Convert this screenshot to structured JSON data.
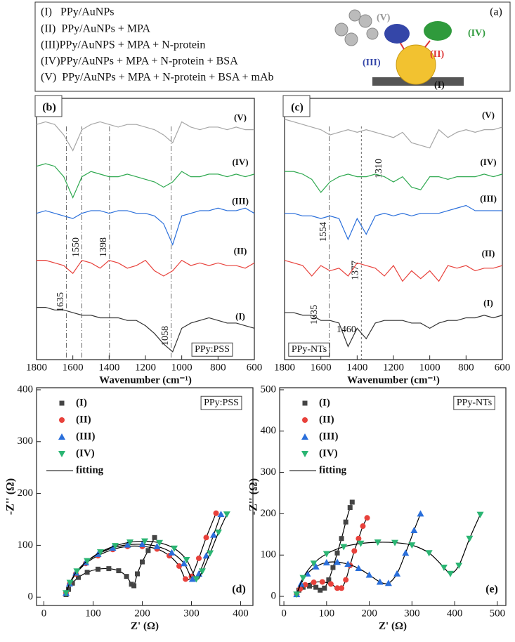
{
  "panel_a": {
    "label": "(a)",
    "items": [
      "(I)   PPy/AuNPs",
      "(II)  PPy/AuNPs + MPA",
      "(III)PPy/AuNPS + MPA + N-protein",
      "(IV)PPy/AuNPs + MPA + N-protein + BSA",
      "(V)  PPy/AuNPs + MPA + N-protein + BSA + mAb"
    ],
    "diagram_labels": [
      "(V)",
      "(IV)",
      "(III)",
      "(II)",
      "(I)"
    ]
  },
  "chart_data": [
    {
      "type": "line",
      "panel_label": "(b)",
      "sample_label": "PPy:PSS",
      "x_label": "Wavenumber (cm⁻¹)",
      "xlim": [
        1800,
        600
      ],
      "xticks": [
        1800,
        1600,
        1400,
        1200,
        1000,
        800,
        600
      ],
      "ylim": [
        0,
        100
      ],
      "x": [
        1800,
        1750,
        1700,
        1650,
        1600,
        1550,
        1500,
        1450,
        1400,
        1350,
        1300,
        1250,
        1200,
        1150,
        1100,
        1050,
        1000,
        950,
        900,
        850,
        800,
        750,
        700,
        650,
        600
      ],
      "series": [
        {
          "name": "(V)",
          "color": "#a6a6a6",
          "values": [
            90,
            91,
            90,
            86,
            80,
            88,
            90,
            91,
            90,
            89,
            90,
            90,
            89,
            88,
            86,
            83,
            91,
            89,
            88,
            89,
            89,
            88,
            89,
            88,
            88
          ]
        },
        {
          "name": "(IV)",
          "color": "#2ea84f",
          "values": [
            74,
            75,
            74,
            70,
            62,
            70,
            72,
            71,
            70,
            70,
            71,
            70,
            69,
            68,
            66,
            68,
            72,
            70,
            70,
            71,
            71,
            70,
            71,
            70,
            71
          ]
        },
        {
          "name": "(III)",
          "color": "#2a6fdb",
          "values": [
            56,
            57,
            56,
            55,
            54,
            56,
            57,
            57,
            56,
            57,
            57,
            56,
            56,
            55,
            52,
            44,
            55,
            56,
            57,
            57,
            58,
            57,
            57,
            58,
            56
          ]
        },
        {
          "name": "(II)",
          "color": "#e8413b",
          "values": [
            38,
            38,
            37,
            36,
            33,
            38,
            37,
            35,
            38,
            37,
            35,
            36,
            38,
            34,
            32,
            34,
            38,
            36,
            37,
            36,
            37,
            36,
            36,
            35,
            37
          ]
        },
        {
          "name": "(I)",
          "color": "#333333",
          "values": [
            20,
            20,
            19,
            19,
            18,
            17,
            17,
            16,
            16,
            16,
            15,
            15,
            13,
            10,
            6,
            3,
            12,
            14,
            15,
            16,
            15,
            14,
            14,
            13,
            12
          ]
        }
      ],
      "marked_lines": [
        1635,
        1550,
        1398,
        1058
      ]
    },
    {
      "type": "line",
      "panel_label": "(c)",
      "sample_label": "PPy-NTs",
      "x_label": "Wavenumber (cm⁻¹)",
      "xlim": [
        1800,
        600
      ],
      "xticks": [
        1800,
        1600,
        1400,
        1200,
        1000,
        800,
        600
      ],
      "ylim": [
        0,
        100
      ],
      "x": [
        1800,
        1750,
        1700,
        1650,
        1600,
        1550,
        1500,
        1450,
        1400,
        1350,
        1300,
        1250,
        1200,
        1150,
        1100,
        1050,
        1000,
        950,
        900,
        850,
        800,
        750,
        700,
        650,
        600
      ],
      "series": [
        {
          "name": "(V)",
          "color": "#a6a6a6",
          "values": [
            92,
            91,
            90,
            89,
            88,
            86,
            87,
            88,
            87,
            88,
            87,
            86,
            85,
            87,
            83,
            82,
            81,
            88,
            85,
            87,
            88,
            87,
            88,
            88,
            89
          ]
        },
        {
          "name": "(IV)",
          "color": "#2ea84f",
          "values": [
            72,
            72,
            71,
            69,
            64,
            68,
            70,
            71,
            70,
            70,
            71,
            70,
            68,
            70,
            66,
            65,
            70,
            70,
            69,
            70,
            70,
            70,
            71,
            70,
            71
          ]
        },
        {
          "name": "(III)",
          "color": "#2a6fdb",
          "values": [
            56,
            56,
            55,
            55,
            54,
            55,
            54,
            46,
            54,
            48,
            55,
            56,
            55,
            56,
            55,
            56,
            56,
            56,
            57,
            58,
            59,
            57,
            57,
            57,
            57
          ]
        },
        {
          "name": "(II)",
          "color": "#e8413b",
          "values": [
            38,
            37,
            36,
            32,
            36,
            34,
            35,
            32,
            37,
            36,
            35,
            32,
            36,
            30,
            34,
            31,
            34,
            30,
            36,
            35,
            36,
            34,
            35,
            35,
            36
          ]
        },
        {
          "name": "(I)",
          "color": "#333333",
          "values": [
            18,
            18,
            17,
            17,
            15,
            15,
            14,
            5,
            12,
            8,
            14,
            15,
            15,
            15,
            14,
            14,
            12,
            14,
            15,
            15,
            16,
            16,
            17,
            16,
            17
          ]
        }
      ],
      "marked_lines": [
        1554,
        1377
      ],
      "peak_labels": [
        1635,
        1460,
        1310
      ]
    },
    {
      "type": "scatter",
      "panel_label": "(d)",
      "sample_label": "PPy:PSS",
      "x_label": "Z' (Ω)",
      "y_label": "-Z'' (Ω)",
      "xlim": [
        -15,
        425
      ],
      "xticks": [
        0,
        100,
        200,
        300,
        400
      ],
      "ylim": [
        -16,
        404
      ],
      "yticks": [
        0,
        100,
        200,
        300,
        400
      ],
      "series": [
        {
          "name": "(I)",
          "color": "#444444",
          "marker": "square",
          "x": [
            45,
            50,
            58,
            70,
            88,
            110,
            132,
            152,
            168,
            178,
            183,
            190,
            200,
            212,
            225
          ],
          "values": [
            5,
            15,
            27,
            38,
            48,
            54,
            55,
            51,
            40,
            25,
            22,
            45,
            68,
            90,
            115
          ]
        },
        {
          "name": "(II)",
          "color": "#e8413b",
          "marker": "circle",
          "x": [
            45,
            52,
            65,
            85,
            110,
            140,
            170,
            200,
            230,
            255,
            275,
            288,
            300,
            315,
            330,
            350
          ],
          "values": [
            8,
            25,
            45,
            65,
            80,
            92,
            98,
            98,
            93,
            80,
            60,
            35,
            40,
            75,
            115,
            162
          ]
        },
        {
          "name": "(III)",
          "color": "#2a6fdb",
          "marker": "triangle-up",
          "x": [
            45,
            52,
            65,
            85,
            110,
            140,
            170,
            200,
            230,
            260,
            285,
            302,
            315,
            330,
            345,
            360
          ],
          "values": [
            8,
            26,
            47,
            67,
            83,
            95,
            101,
            102,
            98,
            86,
            65,
            35,
            45,
            80,
            120,
            160
          ]
        },
        {
          "name": "(IV)",
          "color": "#2bb573",
          "marker": "triangle-down",
          "x": [
            45,
            53,
            67,
            88,
            115,
            145,
            175,
            205,
            235,
            265,
            290,
            310,
            322,
            338,
            355,
            372
          ],
          "values": [
            8,
            28,
            50,
            70,
            87,
            99,
            106,
            108,
            105,
            94,
            72,
            35,
            50,
            85,
            125,
            160
          ]
        }
      ],
      "fit": {
        "name": "fitting",
        "color": "#000000"
      }
    },
    {
      "type": "scatter",
      "panel_label": "(e)",
      "sample_label": "PPy-NTs",
      "x_label": "Z' (Ω)",
      "y_label": "-Z'' (Ω)",
      "xlim": [
        -10,
        520
      ],
      "xticks": [
        0,
        100,
        200,
        300,
        400,
        500
      ],
      "ylim": [
        -22,
        505
      ],
      "yticks": [
        0,
        100,
        200,
        300,
        400,
        500
      ],
      "series": [
        {
          "name": "(I)",
          "color": "#444444",
          "marker": "square",
          "x": [
            30,
            35,
            45,
            60,
            75,
            85,
            95,
            105,
            115,
            125,
            135,
            145,
            155,
            160
          ],
          "values": [
            5,
            15,
            22,
            25,
            22,
            15,
            20,
            40,
            70,
            105,
            140,
            180,
            215,
            228
          ]
        },
        {
          "name": "(II)",
          "color": "#e8413b",
          "marker": "circle",
          "x": [
            30,
            38,
            50,
            70,
            90,
            110,
            125,
            135,
            145,
            155,
            165,
            175,
            185,
            195
          ],
          "values": [
            5,
            18,
            28,
            34,
            35,
            30,
            20,
            20,
            40,
            75,
            110,
            140,
            170,
            190
          ]
        },
        {
          "name": "(III)",
          "color": "#2a6fdb",
          "marker": "triangle-up",
          "x": [
            30,
            40,
            55,
            75,
            100,
            125,
            150,
            175,
            200,
            225,
            245,
            265,
            285,
            305,
            320
          ],
          "values": [
            5,
            30,
            55,
            72,
            82,
            83,
            78,
            68,
            52,
            35,
            32,
            55,
            105,
            160,
            200
          ]
        },
        {
          "name": "(IV)",
          "color": "#2bb573",
          "marker": "triangle-down",
          "x": [
            30,
            45,
            70,
            100,
            140,
            180,
            220,
            260,
            300,
            340,
            375,
            390,
            410,
            435,
            460
          ],
          "values": [
            5,
            45,
            80,
            103,
            120,
            128,
            131,
            130,
            124,
            105,
            70,
            55,
            75,
            140,
            198
          ]
        }
      ],
      "fit": {
        "name": "fitting",
        "color": "#000000"
      }
    }
  ]
}
